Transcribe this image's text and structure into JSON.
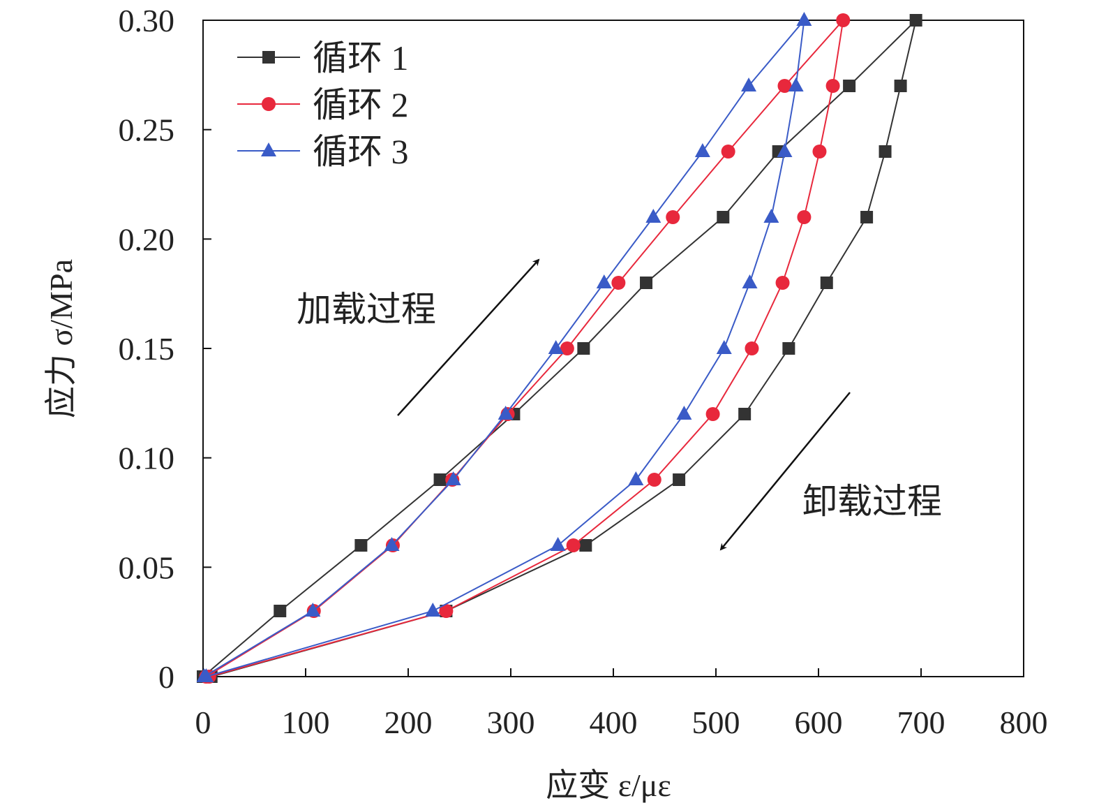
{
  "chart_data": {
    "type": "line",
    "title": "",
    "xlabel": "应变 ε/με",
    "ylabel": "应力 σ/MPa",
    "xlim": [
      0,
      800
    ],
    "ylim": [
      0,
      0.3
    ],
    "xticks": [
      0,
      100,
      200,
      300,
      400,
      500,
      600,
      700,
      800
    ],
    "xtick_labels": [
      "0",
      "100",
      "200",
      "300",
      "400",
      "500",
      "600",
      "700",
      "800"
    ],
    "yticks": [
      0,
      0.05,
      0.1,
      0.15,
      0.2,
      0.25,
      0.3
    ],
    "ytick_labels": [
      "0",
      "0.05",
      "0.10",
      "0.15",
      "0.20",
      "0.25",
      "0.30"
    ],
    "grid": false,
    "legend_position": "top-left",
    "annotations": {
      "loading": "加载过程",
      "unloading": "卸载过程"
    },
    "series": [
      {
        "name": "循环 1",
        "color": "#333333",
        "marker": "square",
        "x": [
          0,
          75,
          154,
          231,
          303,
          371,
          432,
          507,
          561,
          630,
          695,
          680,
          665,
          647,
          608,
          571,
          528,
          464,
          373,
          237,
          8
        ],
        "y": [
          0,
          0.03,
          0.06,
          0.09,
          0.12,
          0.15,
          0.18,
          0.21,
          0.24,
          0.27,
          0.3,
          0.27,
          0.24,
          0.21,
          0.18,
          0.15,
          0.12,
          0.09,
          0.06,
          0.03,
          0
        ]
      },
      {
        "name": "循环 2",
        "color": "#e8283c",
        "marker": "circle",
        "x": [
          3,
          108,
          185,
          243,
          297,
          355,
          405,
          458,
          512,
          567,
          624,
          614,
          601,
          586,
          565,
          535,
          497,
          440,
          361,
          237,
          6
        ],
        "y": [
          0,
          0.03,
          0.06,
          0.09,
          0.12,
          0.15,
          0.18,
          0.21,
          0.24,
          0.27,
          0.3,
          0.27,
          0.24,
          0.21,
          0.18,
          0.15,
          0.12,
          0.09,
          0.06,
          0.03,
          0
        ]
      },
      {
        "name": "循环 3",
        "color": "#3a5bc7",
        "marker": "triangle",
        "x": [
          1,
          107,
          184,
          244,
          295,
          344,
          391,
          439,
          487,
          532,
          586,
          578,
          567,
          554,
          533,
          508,
          469,
          422,
          346,
          224,
          3
        ],
        "y": [
          0,
          0.03,
          0.06,
          0.09,
          0.12,
          0.15,
          0.18,
          0.21,
          0.24,
          0.27,
          0.3,
          0.27,
          0.24,
          0.21,
          0.18,
          0.15,
          0.12,
          0.09,
          0.06,
          0.03,
          0
        ]
      }
    ]
  }
}
